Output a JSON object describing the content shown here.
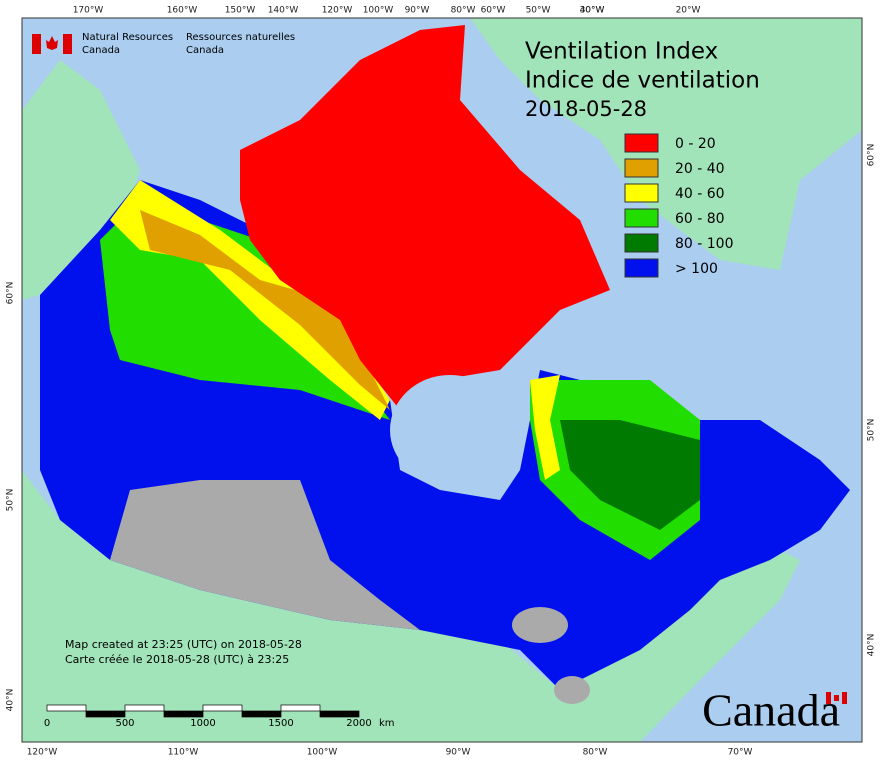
{
  "header": {
    "agency_en": [
      "Natural Resources",
      "Canada"
    ],
    "agency_fr": [
      "Ressources naturelles",
      "Canada"
    ]
  },
  "title": {
    "en": "Ventilation Index",
    "fr": "Indice de ventilation",
    "date": "2018-05-28"
  },
  "legend": [
    {
      "label": "0 - 20",
      "color": "#ff0000"
    },
    {
      "label": "20 - 40",
      "color": "#e0a000"
    },
    {
      "label": "40 - 60",
      "color": "#ffff00"
    },
    {
      "label": "60 - 80",
      "color": "#22dd00"
    },
    {
      "label": "80 - 100",
      "color": "#007a00"
    },
    {
      "label": "> 100",
      "color": "#0011ee"
    }
  ],
  "graticule": {
    "top": [
      "170°W",
      "160°W",
      "150°W",
      "140°W",
      "120°W",
      "100°W",
      "90°W",
      "80°W",
      "60°W",
      "50°W",
      "40°W",
      "30°W",
      "20°W"
    ],
    "bottom": [
      "120°W",
      "110°W",
      "100°W",
      "90°W",
      "80°W",
      "70°W"
    ],
    "left": [
      "60°N",
      "50°N",
      "40°N"
    ],
    "right": [
      "60°N",
      "50°N",
      "40°N"
    ]
  },
  "notes": [
    "Map created at 23:25 (UTC) on 2018-05-28",
    "Carte créée le 2018-05-28 (UTC) à 23:25"
  ],
  "scale_bar": {
    "labels": [
      "0",
      "500",
      "1000",
      "1500",
      "2000"
    ],
    "unit": "km"
  },
  "wordmark": "Canada"
}
